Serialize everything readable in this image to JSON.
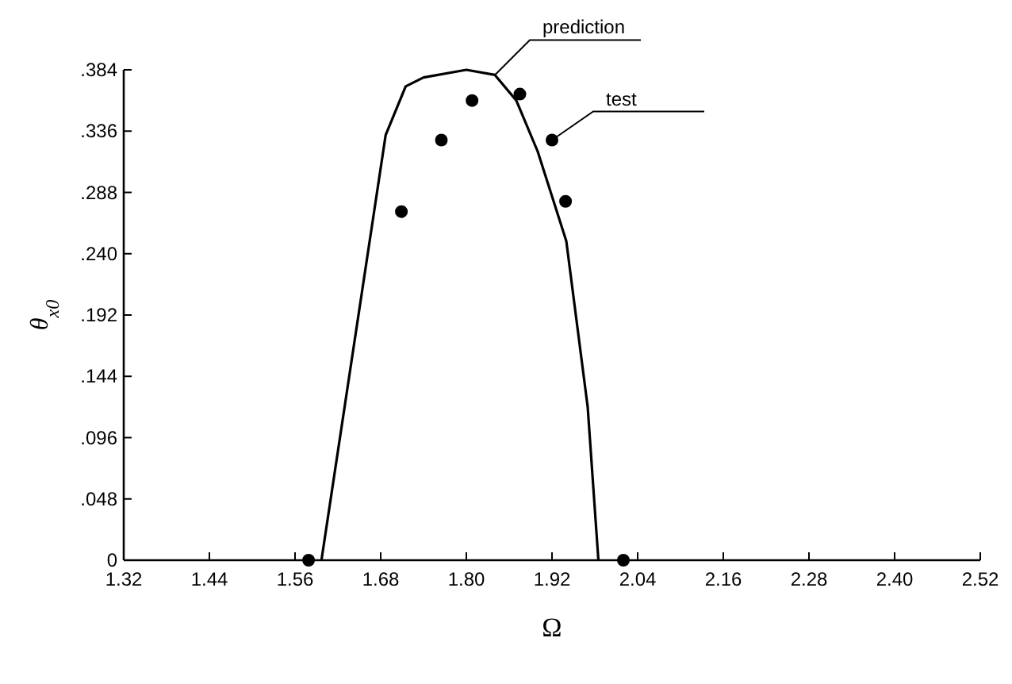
{
  "chart_data": {
    "type": "line",
    "xlabel": "Ω",
    "ylabel": "θ$_{x0}$",
    "xlim": [
      1.32,
      2.52
    ],
    "xticks": [
      1.32,
      1.44,
      1.56,
      1.68,
      {
        "value": 1.8,
        "label": "1.80"
      },
      1.92,
      2.04,
      2.16,
      2.28,
      {
        "value": 2.4,
        "label": "2.40"
      },
      2.52
    ],
    "ylim": [
      0,
      0.384
    ],
    "yticks": [
      0,
      {
        "value": 0.048,
        "label": ".048"
      },
      {
        "value": 0.096,
        "label": ".096"
      },
      {
        "value": 0.144,
        "label": ".144"
      },
      {
        "value": 0.192,
        "label": ".192"
      },
      {
        "value": 0.24,
        "label": ".240"
      },
      {
        "value": 0.288,
        "label": ".288"
      },
      {
        "value": 0.336,
        "label": ".336"
      },
      {
        "value": 0.384,
        "label": ".384"
      }
    ],
    "grid": false,
    "series": [
      {
        "color": "#000000",
        "marker": "none",
        "x": [
          1.597,
          1.687,
          1.715,
          1.74,
          1.8,
          1.84,
          1.87,
          1.9,
          1.94,
          1.97,
          1.985
        ],
        "values": [
          0,
          0.333,
          0.371,
          0.378,
          0.384,
          0.38,
          0.36,
          0.32,
          0.25,
          0.12,
          0
        ]
      },
      {
        "type": "scatter",
        "color": "#000000",
        "marker": "circle",
        "x": [
          1.579,
          1.709,
          1.765,
          1.808,
          1.875,
          1.92,
          1.939,
          2.02
        ],
        "values": [
          0,
          0.273,
          0.329,
          0.36,
          0.365,
          0.329,
          0.281,
          0
        ]
      }
    ],
    "annotations": [
      {
        "text": "prediction",
        "x": 1.84,
        "y": 0.38
      },
      {
        "text": "test",
        "x": 1.92,
        "y": 0.329
      }
    ]
  }
}
